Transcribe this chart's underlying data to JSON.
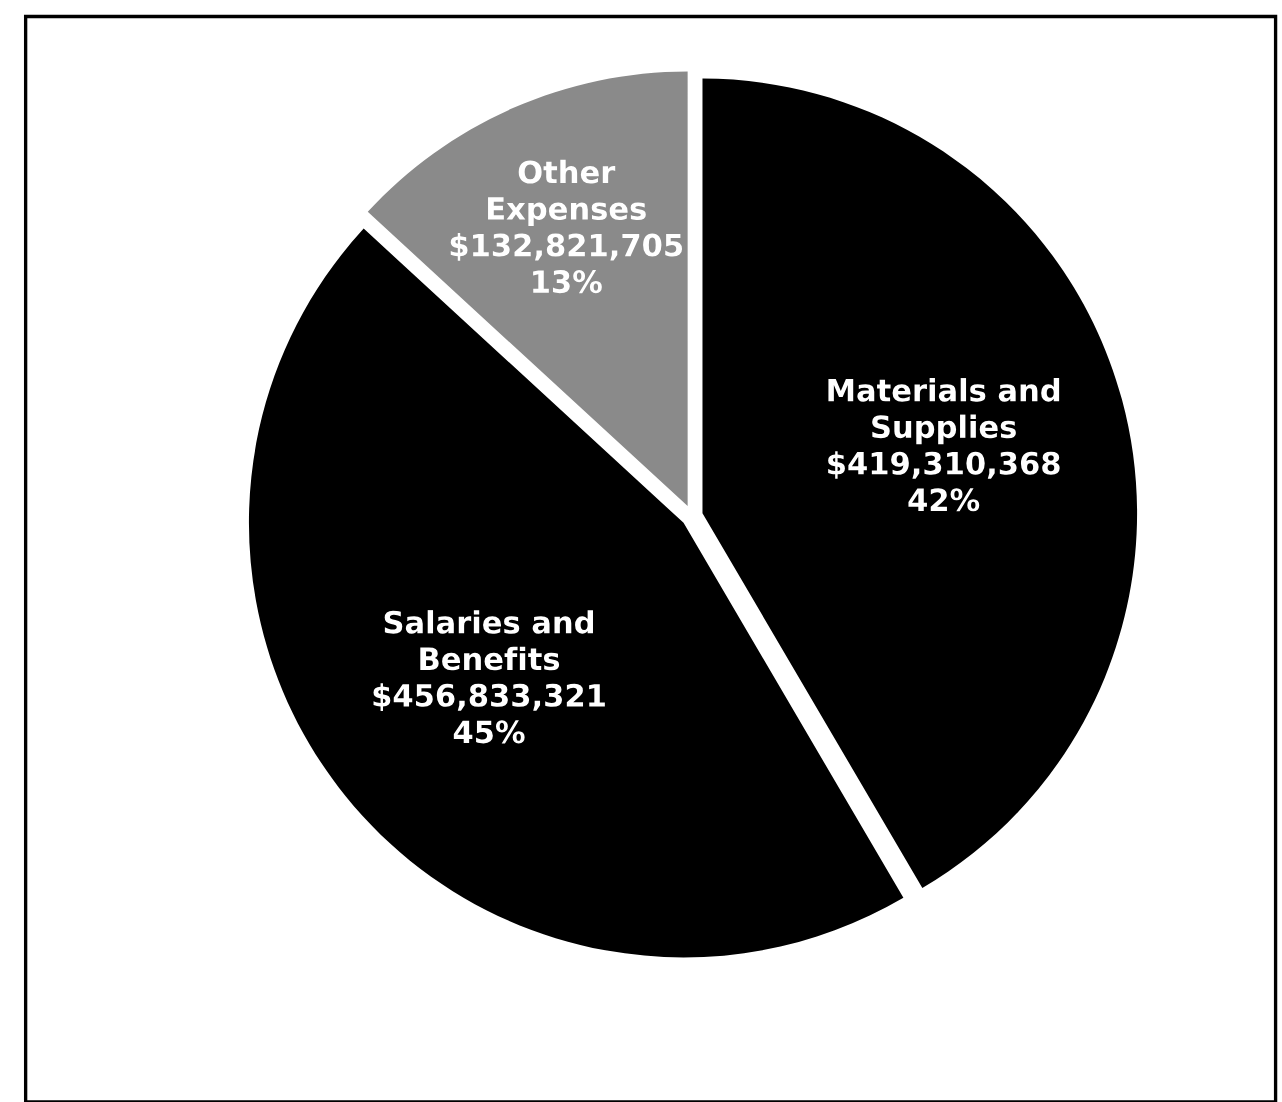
{
  "chart_data": {
    "type": "pie",
    "categories": [
      "Materials and\nSupplies",
      "Salaries and\nBenefits",
      "Other\nExpenses"
    ],
    "values": [
      419310368,
      456833321,
      132821705
    ],
    "value_labels": [
      "$419,310,368\n42%",
      "$456,833,321\n45%",
      "$132,821,705\n13%"
    ],
    "colors": [
      "#000000",
      "#000000",
      "#8a8a8a"
    ],
    "legend": false
  }
}
